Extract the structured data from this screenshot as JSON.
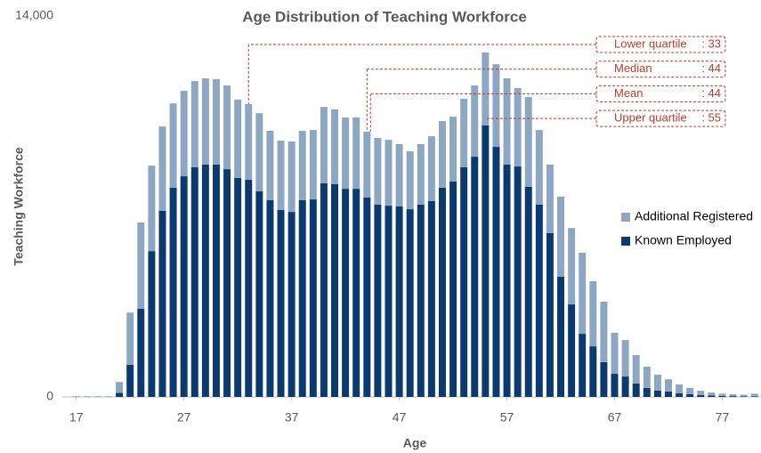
{
  "chart_data": {
    "type": "stacked_bar",
    "title": "Age Distribution of Teaching Workforce",
    "xlabel": "Age",
    "ylabel": "Teaching Workforce",
    "x": [
      17,
      18,
      19,
      20,
      21,
      22,
      23,
      24,
      25,
      26,
      27,
      28,
      29,
      30,
      31,
      32,
      33,
      34,
      35,
      36,
      37,
      38,
      39,
      40,
      41,
      42,
      43,
      44,
      45,
      46,
      47,
      48,
      49,
      50,
      51,
      52,
      53,
      54,
      55,
      56,
      57,
      58,
      59,
      60,
      61,
      62,
      63,
      64,
      65,
      66,
      67,
      68,
      69,
      70,
      71,
      72,
      73,
      74,
      75,
      76,
      77,
      78,
      79,
      80
    ],
    "series": [
      {
        "name": "Known Employed",
        "color": "#0b3a6e",
        "values": [
          10,
          10,
          10,
          10,
          150,
          1180,
          3240,
          5360,
          6840,
          7690,
          8110,
          8440,
          8540,
          8540,
          8370,
          8050,
          7980,
          7560,
          7230,
          6870,
          6800,
          7230,
          7260,
          7850,
          7820,
          7650,
          7650,
          7330,
          7070,
          7030,
          7000,
          6900,
          7070,
          7200,
          7690,
          7920,
          8440,
          8830,
          9980,
          9190,
          8540,
          8470,
          7720,
          7070,
          6020,
          4420,
          3400,
          2320,
          1860,
          1280,
          850,
          750,
          490,
          330,
          230,
          200,
          130,
          100,
          70,
          50,
          40,
          30,
          20,
          20
        ]
      },
      {
        "name": "Additional Registered",
        "color": "#8da6c2",
        "values": [
          10,
          10,
          10,
          10,
          400,
          1920,
          3170,
          3140,
          3100,
          3100,
          3140,
          3170,
          3170,
          3140,
          3080,
          2880,
          2780,
          2870,
          2550,
          2550,
          2590,
          2550,
          2550,
          2810,
          2750,
          2620,
          2620,
          2420,
          2450,
          2420,
          2290,
          2130,
          2220,
          2380,
          2450,
          2380,
          2520,
          2620,
          2680,
          3040,
          3170,
          2880,
          3300,
          2740,
          2520,
          2940,
          2810,
          2980,
          2390,
          2220,
          1510,
          1340,
          1050,
          780,
          590,
          450,
          330,
          230,
          160,
          110,
          80,
          70,
          60,
          100
        ]
      }
    ],
    "xlim": [
      15.7,
      80.6
    ],
    "xticks": [
      17,
      27,
      37,
      47,
      57,
      67,
      77
    ],
    "ylim": [
      0,
      14000
    ],
    "yticks": [
      0,
      {
        "value": 14000,
        "label": "14,000"
      }
    ],
    "legend": "right",
    "annotations": [
      {
        "label": "Lower quartile",
        "value": 33,
        "value_label": ": 33"
      },
      {
        "label": "Median",
        "value": 44,
        "value_label": ": 44"
      },
      {
        "label": "Mean",
        "value": 44,
        "value_label": ": 44"
      },
      {
        "label": "Upper quartile",
        "value": 55,
        "value_label": ": 55"
      }
    ]
  }
}
